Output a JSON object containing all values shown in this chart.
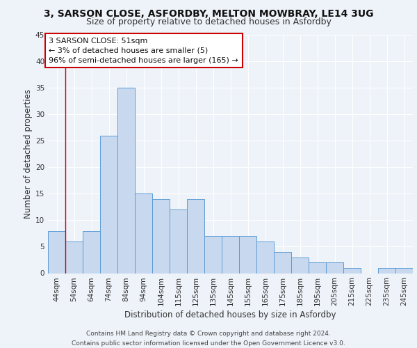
{
  "title_line1": "3, SARSON CLOSE, ASFORDBY, MELTON MOWBRAY, LE14 3UG",
  "title_line2": "Size of property relative to detached houses in Asfordby",
  "xlabel": "Distribution of detached houses by size in Asfordby",
  "ylabel": "Number of detached properties",
  "categories": [
    "44sqm",
    "54sqm",
    "64sqm",
    "74sqm",
    "84sqm",
    "94sqm",
    "104sqm",
    "115sqm",
    "125sqm",
    "135sqm",
    "145sqm",
    "155sqm",
    "165sqm",
    "175sqm",
    "185sqm",
    "195sqm",
    "205sqm",
    "215sqm",
    "225sqm",
    "235sqm",
    "245sqm"
  ],
  "values": [
    8,
    6,
    8,
    26,
    35,
    15,
    14,
    12,
    14,
    7,
    7,
    7,
    6,
    4,
    3,
    2,
    2,
    1,
    0,
    1,
    1
  ],
  "bar_color": "#c8d9ef",
  "bar_edge_color": "#5b9bd5",
  "annotation_box_text": "3 SARSON CLOSE: 51sqm\n← 3% of detached houses are smaller (5)\n96% of semi-detached houses are larger (165) →",
  "annotation_box_color": "#ffffff",
  "annotation_box_edge_color": "#cc0000",
  "vline_color": "#cc0000",
  "ylim": [
    0,
    45
  ],
  "yticks": [
    0,
    5,
    10,
    15,
    20,
    25,
    30,
    35,
    40,
    45
  ],
  "background_color": "#eef3f9",
  "plot_background_color": "#eef3f9",
  "footer_line1": "Contains HM Land Registry data © Crown copyright and database right 2024.",
  "footer_line2": "Contains public sector information licensed under the Open Government Licence v3.0.",
  "title_fontsize": 10,
  "subtitle_fontsize": 9,
  "axis_label_fontsize": 8.5,
  "tick_fontsize": 7.5,
  "annotation_fontsize": 8,
  "footer_fontsize": 6.5,
  "grid_color": "#ffffff",
  "tick_label_color": "#333333"
}
